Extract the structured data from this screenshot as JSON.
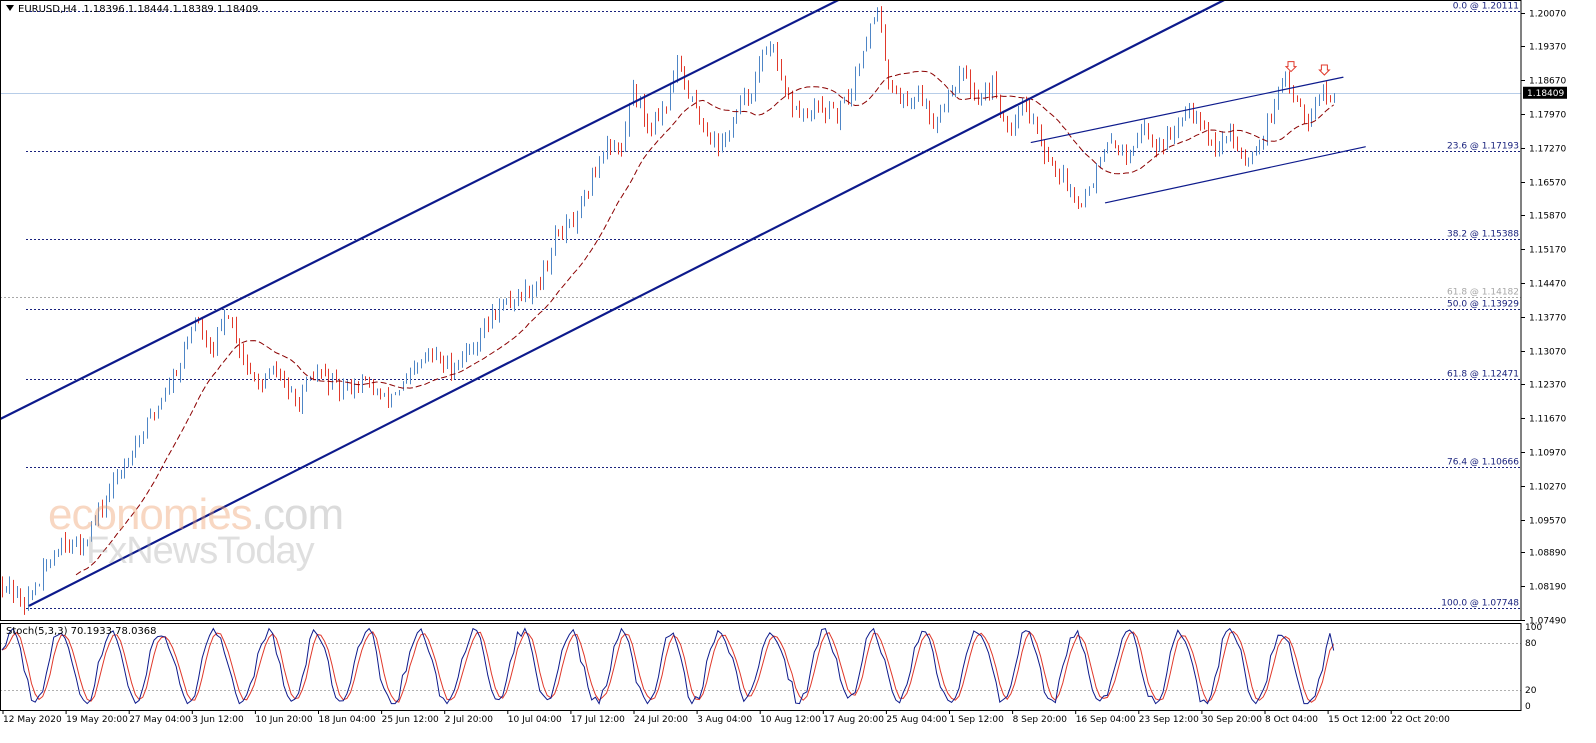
{
  "header": {
    "symbol": "EURUSD,H4",
    "quote": "1.18396 1.18444 1.18389 1.18409"
  },
  "watermark": {
    "brand": "economies",
    "domain": ".com",
    "sub": "FxNewsToday"
  },
  "stoch_header": "Stoch(5,3,3) 70.1933 78.0368",
  "colors": {
    "bull_candle": "#4f86c6",
    "bear_candle": "#e0392b",
    "channel": "#0d1a8c",
    "fib_line": "#1a237e",
    "ma": "#8b0000",
    "stoch_main": "#0d1a8c",
    "stoch_signal": "#e0392b",
    "arrow": "#e0392b",
    "price_marker_bg": "#000000"
  },
  "chart_data": [
    {
      "type": "candlestick",
      "title": "EURUSD,H4",
      "x_ticks": [
        "12 May 2020",
        "19 May 20:00",
        "27 May 04:00",
        "3 Jun 12:00",
        "10 Jun 20:00",
        "18 Jun 04:00",
        "25 Jun 12:00",
        "2 Jul 20:00",
        "10 Jul 04:00",
        "17 Jul 12:00",
        "24 Jul 20:00",
        "3 Aug 04:00",
        "10 Aug 12:00",
        "17 Aug 20:00",
        "25 Aug 04:00",
        "1 Sep 12:00",
        "8 Sep 20:00",
        "16 Sep 04:00",
        "23 Sep 12:00",
        "30 Sep 20:00",
        "8 Oct 04:00",
        "15 Oct 12:00",
        "22 Oct 20:00"
      ],
      "y_ticks": [
        "1.20070",
        "1.19370",
        "1.18670",
        "1.17970",
        "1.17270",
        "1.16570",
        "1.15870",
        "1.15170",
        "1.14470",
        "1.13770",
        "1.13070",
        "1.12370",
        "1.11670",
        "1.10970",
        "1.10270",
        "1.09570",
        "1.08890",
        "1.08190",
        "1.07490"
      ],
      "ylim": [
        1.0749,
        1.2033
      ],
      "current_price": "1.18409",
      "fib_levels": [
        {
          "label": "0.0 @ 1.20111",
          "value": 1.20111
        },
        {
          "label": "23.6 @ 1.17193",
          "value": 1.17193
        },
        {
          "label": "38.2 @ 1.15388",
          "value": 1.15388
        },
        {
          "label": "61.8 @ 1.14182",
          "value": 1.14182,
          "faded": true
        },
        {
          "label": "50.0 @ 1.13929",
          "value": 1.13929
        },
        {
          "label": "61.8 @ 1.12471",
          "value": 1.12471
        },
        {
          "label": "76.4 @ 1.10666",
          "value": 1.10666
        },
        {
          "label": "100.0 @ 1.07748",
          "value": 1.07748
        }
      ],
      "price_path": [
        {
          "t": 0,
          "p": 1.083
        },
        {
          "t": 3,
          "p": 1.0815
        },
        {
          "t": 7,
          "p": 1.0782
        },
        {
          "t": 12,
          "p": 1.0845
        },
        {
          "t": 17,
          "p": 1.0915
        },
        {
          "t": 22,
          "p": 1.09
        },
        {
          "t": 28,
          "p": 1.0985
        },
        {
          "t": 35,
          "p": 1.109
        },
        {
          "t": 42,
          "p": 1.118
        },
        {
          "t": 49,
          "p": 1.1285
        },
        {
          "t": 53,
          "p": 1.1375
        },
        {
          "t": 57,
          "p": 1.13
        },
        {
          "t": 62,
          "p": 1.1385
        },
        {
          "t": 66,
          "p": 1.129
        },
        {
          "t": 70,
          "p": 1.123
        },
        {
          "t": 75,
          "p": 1.127
        },
        {
          "t": 80,
          "p": 1.1195
        },
        {
          "t": 86,
          "p": 1.1265
        },
        {
          "t": 92,
          "p": 1.1225
        },
        {
          "t": 98,
          "p": 1.1245
        },
        {
          "t": 104,
          "p": 1.1205
        },
        {
          "t": 110,
          "p": 1.124
        },
        {
          "t": 116,
          "p": 1.13
        },
        {
          "t": 122,
          "p": 1.127
        },
        {
          "t": 128,
          "p": 1.132
        },
        {
          "t": 134,
          "p": 1.139
        },
        {
          "t": 140,
          "p": 1.142
        },
        {
          "t": 146,
          "p": 1.145
        },
        {
          "t": 150,
          "p": 1.154
        },
        {
          "t": 156,
          "p": 1.158
        },
        {
          "t": 160,
          "p": 1.166
        },
        {
          "t": 164,
          "p": 1.174
        },
        {
          "t": 168,
          "p": 1.172
        },
        {
          "t": 171,
          "p": 1.186
        },
        {
          "t": 175,
          "p": 1.177
        },
        {
          "t": 180,
          "p": 1.182
        },
        {
          "t": 183,
          "p": 1.19
        },
        {
          "t": 187,
          "p": 1.182
        },
        {
          "t": 191,
          "p": 1.176
        },
        {
          "t": 195,
          "p": 1.173
        },
        {
          "t": 199,
          "p": 1.18
        },
        {
          "t": 203,
          "p": 1.185
        },
        {
          "t": 208,
          "p": 1.195
        },
        {
          "t": 212,
          "p": 1.183
        },
        {
          "t": 217,
          "p": 1.179
        },
        {
          "t": 221,
          "p": 1.181
        },
        {
          "t": 226,
          "p": 1.179
        },
        {
          "t": 230,
          "p": 1.185
        },
        {
          "t": 234,
          "p": 1.196
        },
        {
          "t": 237,
          "p": 1.2005
        },
        {
          "t": 240,
          "p": 1.187
        },
        {
          "t": 244,
          "p": 1.182
        },
        {
          "t": 248,
          "p": 1.184
        },
        {
          "t": 252,
          "p": 1.178
        },
        {
          "t": 256,
          "p": 1.184
        },
        {
          "t": 260,
          "p": 1.188
        },
        {
          "t": 264,
          "p": 1.183
        },
        {
          "t": 268,
          "p": 1.186
        },
        {
          "t": 272,
          "p": 1.176
        },
        {
          "t": 276,
          "p": 1.183
        },
        {
          "t": 280,
          "p": 1.176
        },
        {
          "t": 284,
          "p": 1.169
        },
        {
          "t": 288,
          "p": 1.165
        },
        {
          "t": 292,
          "p": 1.1615
        },
        {
          "t": 296,
          "p": 1.168
        },
        {
          "t": 300,
          "p": 1.174
        },
        {
          "t": 304,
          "p": 1.171
        },
        {
          "t": 308,
          "p": 1.177
        },
        {
          "t": 312,
          "p": 1.173
        },
        {
          "t": 316,
          "p": 1.175
        },
        {
          "t": 320,
          "p": 1.182
        },
        {
          "t": 324,
          "p": 1.179
        },
        {
          "t": 328,
          "p": 1.172
        },
        {
          "t": 332,
          "p": 1.176
        },
        {
          "t": 336,
          "p": 1.17
        },
        {
          "t": 340,
          "p": 1.174
        },
        {
          "t": 344,
          "p": 1.181
        },
        {
          "t": 347,
          "p": 1.187
        },
        {
          "t": 350,
          "p": 1.183
        },
        {
          "t": 353,
          "p": 1.179
        },
        {
          "t": 356,
          "p": 1.1845
        },
        {
          "t": 358,
          "p": 1.1841
        }
      ],
      "x_range": [
        0,
        410
      ],
      "candles_count": 360,
      "ma_lag": 20,
      "channel_upper": [
        {
          "t": 0,
          "p": 1.1165
        },
        {
          "t": 226,
          "p": 1.2033
        }
      ],
      "channel_lower": [
        {
          "t": 8,
          "p": 1.0779
        },
        {
          "t": 330,
          "p": 1.2033
        }
      ],
      "wedge_upper": [
        {
          "t": 278,
          "p": 1.1738
        },
        {
          "t": 362,
          "p": 1.1873
        }
      ],
      "wedge_lower": [
        {
          "t": 298,
          "p": 1.1613
        },
        {
          "t": 368,
          "p": 1.1729
        }
      ],
      "arrows": [
        {
          "t": 348,
          "p": 1.1893
        },
        {
          "t": 357,
          "p": 1.1886
        }
      ]
    },
    {
      "type": "line",
      "title": "Stoch(5,3,3)",
      "series": [
        {
          "values": [
            70.1933
          ],
          "color": "#0d1a8c"
        },
        {
          "values": [
            78.0368
          ],
          "color": "#e0392b"
        }
      ],
      "y_ticks": [
        "100",
        "80",
        "20",
        "0"
      ],
      "ylim": [
        0,
        100
      ],
      "levels": [
        80,
        20
      ]
    }
  ]
}
